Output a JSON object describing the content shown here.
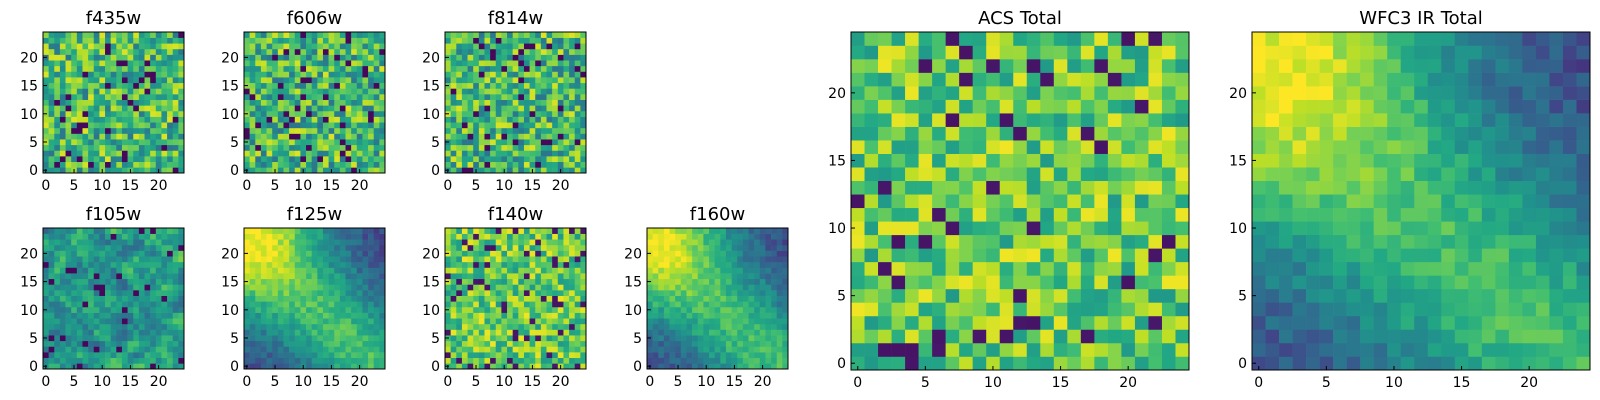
{
  "chart_data": [
    {
      "type": "heatmap",
      "title": "f435w",
      "pattern": "noise",
      "seed": 11,
      "xticks": [
        "0",
        "5",
        "10",
        "15",
        "20"
      ],
      "yticks": [
        "0",
        "5",
        "10",
        "15",
        "20"
      ],
      "cmap": "viridis"
    },
    {
      "type": "heatmap",
      "title": "f606w",
      "pattern": "noise",
      "seed": 23,
      "xticks": [
        "0",
        "5",
        "10",
        "15",
        "20"
      ],
      "yticks": [
        "0",
        "5",
        "10",
        "15",
        "20"
      ],
      "cmap": "viridis"
    },
    {
      "type": "heatmap",
      "title": "f814w",
      "pattern": "noise",
      "seed": 37,
      "xticks": [
        "0",
        "5",
        "10",
        "15",
        "20"
      ],
      "yticks": [
        "0",
        "5",
        "10",
        "15",
        "20"
      ],
      "cmap": "viridis"
    },
    {
      "type": "heatmap",
      "title": "f105w",
      "pattern": "smooth-noise",
      "seed": 41,
      "xticks": [
        "0",
        "5",
        "10",
        "15",
        "20"
      ],
      "yticks": [
        "0",
        "5",
        "10",
        "15",
        "20"
      ],
      "cmap": "viridis"
    },
    {
      "type": "heatmap",
      "title": "f125w",
      "pattern": "diagonal-band",
      "seed": 53,
      "xticks": [
        "0",
        "5",
        "10",
        "15",
        "20"
      ],
      "yticks": [
        "0",
        "5",
        "10",
        "15",
        "20"
      ],
      "cmap": "viridis"
    },
    {
      "type": "heatmap",
      "title": "f140w",
      "pattern": "noise-bright",
      "seed": 67,
      "xticks": [
        "0",
        "5",
        "10",
        "15",
        "20"
      ],
      "yticks": [
        "0",
        "5",
        "10",
        "15",
        "20"
      ],
      "cmap": "viridis"
    },
    {
      "type": "heatmap",
      "title": "f160w",
      "pattern": "diagonal-band",
      "seed": 79,
      "xticks": [
        "0",
        "5",
        "10",
        "15",
        "20"
      ],
      "yticks": [
        "0",
        "5",
        "10",
        "15",
        "20"
      ],
      "cmap": "viridis"
    },
    {
      "type": "heatmap",
      "title": "ACS Total",
      "pattern": "noise-bright",
      "seed": 97,
      "xticks": [
        "0",
        "5",
        "10",
        "15",
        "20"
      ],
      "yticks": [
        "0",
        "5",
        "10",
        "15",
        "20"
      ],
      "cmap": "viridis"
    },
    {
      "type": "heatmap",
      "title": "WFC3 IR Total",
      "pattern": "diagonal-band",
      "seed": 101,
      "xticks": [
        "0",
        "5",
        "10",
        "15",
        "20"
      ],
      "yticks": [
        "0",
        "5",
        "10",
        "15",
        "20"
      ],
      "cmap": "viridis"
    }
  ],
  "grid": {
    "nx": 25,
    "ny": 25
  }
}
